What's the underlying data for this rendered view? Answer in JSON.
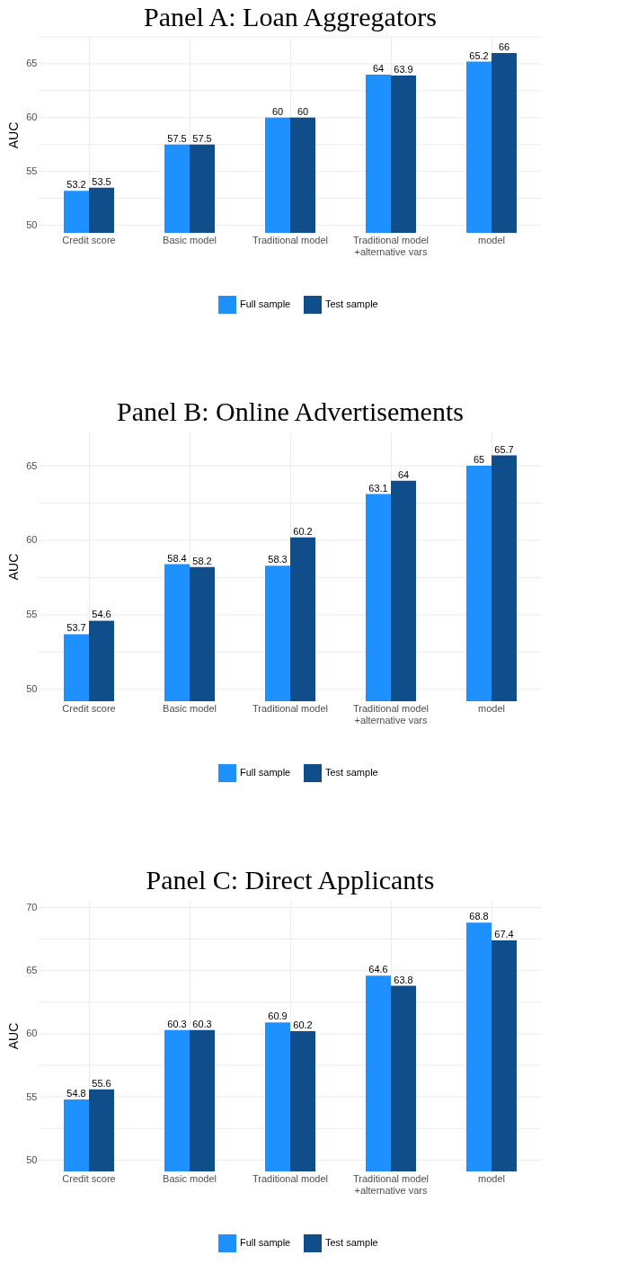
{
  "chart_data": [
    {
      "type": "bar",
      "title": "Panel A: Loan Aggregators",
      "ylabel": "AUC",
      "categories": [
        "Credit score",
        "Basic model",
        "Traditional model",
        "Traditional model\n+alternative vars",
        "model"
      ],
      "series": [
        {
          "name": "Full sample",
          "color": "#1e90ff",
          "values": [
            53.2,
            57.5,
            60,
            64,
            65.2
          ]
        },
        {
          "name": "Test sample",
          "color": "#104e8b",
          "values": [
            53.5,
            57.5,
            60,
            63.9,
            66
          ]
        }
      ],
      "ylim": [
        49.3,
        67.5
      ],
      "yticks": [
        50,
        {
          "value": 52.5,
          "label": null
        },
        55,
        {
          "value": 57.5,
          "label": null
        },
        60,
        {
          "value": 62.5,
          "label": null
        },
        65,
        {
          "value": 67.5,
          "label": null
        }
      ],
      "grid": true,
      "legend": "bottom",
      "data_labels": true
    },
    {
      "type": "bar",
      "title": "Panel B: Online Advertisements",
      "ylabel": "AUC",
      "categories": [
        "Credit score",
        "Basic model",
        "Traditional model",
        "Traditional model\n+alternative vars",
        "model"
      ],
      "series": [
        {
          "name": "Full sample",
          "color": "#1e90ff",
          "values": [
            53.7,
            58.4,
            58.3,
            63.1,
            65
          ]
        },
        {
          "name": "Test sample",
          "color": "#104e8b",
          "values": [
            54.6,
            58.2,
            60.2,
            64,
            65.7
          ]
        }
      ],
      "ylim": [
        49.2,
        67.3
      ],
      "yticks": [
        50,
        {
          "value": 52.5,
          "label": null
        },
        55,
        {
          "value": 57.5,
          "label": null
        },
        60,
        {
          "value": 62.5,
          "label": null
        },
        65
      ],
      "grid": true,
      "legend": "bottom",
      "data_labels": true
    },
    {
      "type": "bar",
      "title": "Panel C: Direct Applicants",
      "ylabel": "AUC",
      "categories": [
        "Credit score",
        "Basic model",
        "Traditional model",
        "Traditional model\n+alternative vars",
        "model"
      ],
      "series": [
        {
          "name": "Full sample",
          "color": "#1e90ff",
          "values": [
            54.8,
            60.3,
            60.9,
            64.6,
            68.8
          ]
        },
        {
          "name": "Test sample",
          "color": "#104e8b",
          "values": [
            55.6,
            60.3,
            60.2,
            63.8,
            67.4
          ]
        }
      ],
      "ylim": [
        49.1,
        70.6
      ],
      "yticks": [
        50,
        {
          "value": 52.5,
          "label": null
        },
        55,
        {
          "value": 57.5,
          "label": null
        },
        60,
        {
          "value": 62.5,
          "label": null
        },
        65,
        {
          "value": 67.5,
          "label": null
        },
        70
      ],
      "grid": true,
      "legend": "bottom",
      "data_labels": true
    }
  ]
}
